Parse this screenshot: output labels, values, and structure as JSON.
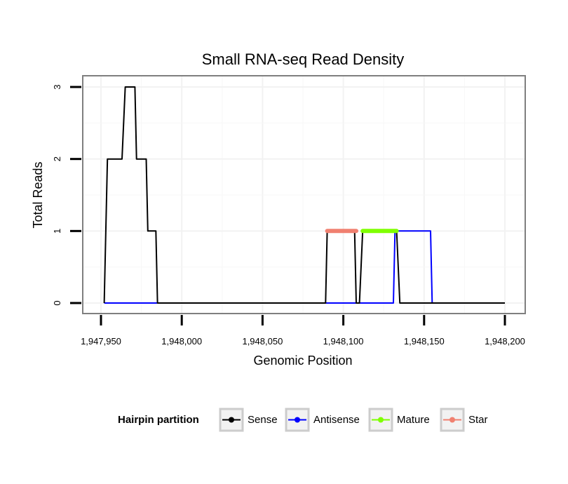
{
  "chart_data": {
    "type": "line",
    "title": "Small RNA-seq Read Density",
    "xlabel": "Genomic Position",
    "ylabel": "Total Reads",
    "xlim": [
      1947950,
      1948200
    ],
    "ylim": [
      0,
      3
    ],
    "x_ticks": [
      1947950,
      1948000,
      1948050,
      1948100,
      1948150,
      1948200
    ],
    "x_tick_labels": [
      "1,947,950",
      "1,948,000",
      "1,948,050",
      "1,948,100",
      "1,948,150",
      "1,948,200"
    ],
    "y_ticks": [
      0,
      1,
      2,
      3
    ],
    "y_tick_labels": [
      "0",
      "1",
      "2",
      "3"
    ],
    "grid": true,
    "legend": {
      "title": "Hairpin partition",
      "position": "bottom",
      "entries": [
        "Sense",
        "Antisense",
        "Mature",
        "Star"
      ]
    },
    "series": [
      {
        "name": "Sense",
        "color": "#000000",
        "x": [
          1947952,
          1947954,
          1947963,
          1947965,
          1947971,
          1947972,
          1947978,
          1947979,
          1947984,
          1947985,
          1948089,
          1948090,
          1948107,
          1948108,
          1948110,
          1948112,
          1948133,
          1948135,
          1948200
        ],
        "y": [
          0,
          2,
          2,
          3,
          3,
          2,
          2,
          1,
          1,
          0,
          0,
          1,
          1,
          0,
          0,
          1,
          1,
          0,
          0
        ]
      },
      {
        "name": "Antisense",
        "color": "#0000ff",
        "x": [
          1947952,
          1948131,
          1948132,
          1948154,
          1948155
        ],
        "y": [
          0,
          0,
          1,
          1,
          0
        ]
      },
      {
        "name": "Mature",
        "color": "#7fff00",
        "x": [
          1948112,
          1948133
        ],
        "y": [
          1,
          1
        ]
      },
      {
        "name": "Star",
        "color": "#f08070",
        "x": [
          1948090,
          1948108
        ],
        "y": [
          1,
          1
        ]
      }
    ]
  }
}
